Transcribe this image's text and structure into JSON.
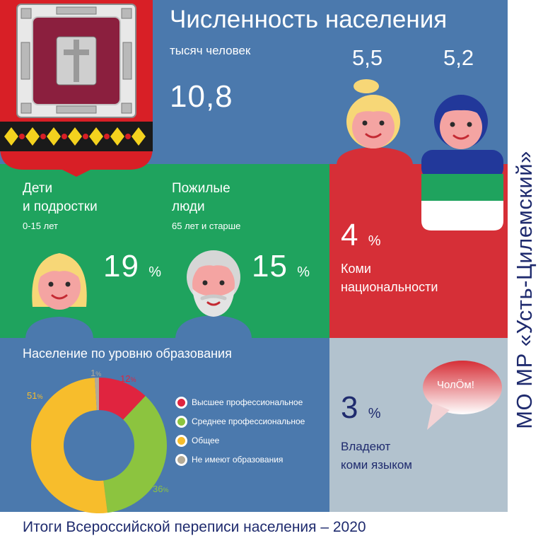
{
  "population": {
    "title": "Численность населения",
    "unit": "тысяч человек",
    "total": "10,8",
    "female": "5,5",
    "male": "5,2"
  },
  "children": {
    "title_line1": "Дети",
    "title_line2": "и подростки",
    "age": "0-15 лет",
    "value": "19",
    "unit": "%"
  },
  "elderly": {
    "title_line1": "Пожилые",
    "title_line2": "люди",
    "age": "65 лет и старше",
    "value": "15",
    "unit": "%"
  },
  "komi_nationality": {
    "value": "4",
    "unit": "%",
    "label_line1": "Коми",
    "label_line2": "национальности"
  },
  "komi_language": {
    "bubble": "ЧолÖм!",
    "value": "3",
    "unit": "%",
    "label_line1": "Владеют",
    "label_line2": "коми языком"
  },
  "side_title": "МО МР «Усть-Цилемский»",
  "footer": "Итоги Всероссийской переписи населения – 2020",
  "chart_data": {
    "type": "pie",
    "variant": "donut",
    "title": "Население по уровню образования",
    "categories": [
      "Высшее профессиональное",
      "Среднее профессиональное",
      "Общее",
      "Не имеют образования"
    ],
    "values": [
      12,
      36,
      51,
      1
    ],
    "value_labels": [
      "12",
      "36",
      "51",
      "1"
    ],
    "unit": "%",
    "colors": [
      "#e0243f",
      "#8cc43f",
      "#f7bd2c",
      "#b3aa97"
    ],
    "legend_position": "right"
  },
  "colors": {
    "blue": "#4b79ad",
    "green": "#1fa35e",
    "red": "#d62f37",
    "gray": "#b2c2ce",
    "navy": "#1f2b6e"
  }
}
